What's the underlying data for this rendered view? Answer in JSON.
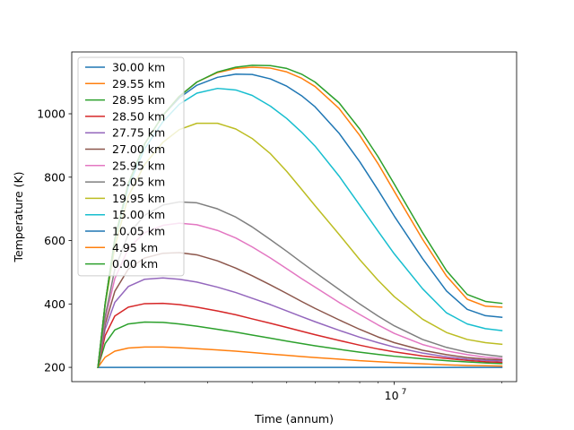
{
  "chart_data": {
    "type": "line",
    "title": "",
    "xlabel": "Time (annum)",
    "ylabel": "Temperature (K)",
    "xscale": "log",
    "xlim": [
      1250000,
      22000000
    ],
    "ylim": [
      155,
      1195
    ],
    "x_major_ticks": [
      {
        "value": 10000000,
        "label": "10",
        "exponent": "7"
      }
    ],
    "x_minor_ticks": [
      2000000,
      3000000,
      4000000,
      5000000,
      6000000,
      7000000,
      8000000,
      9000000,
      20000000
    ],
    "y_ticks": [
      200,
      400,
      600,
      800,
      1000
    ],
    "legend_position": "upper-left",
    "x": [
      1480000,
      1550000,
      1650000,
      1800000,
      2000000,
      2250000,
      2500000,
      2800000,
      3200000,
      3600000,
      4000000,
      4500000,
      5000000,
      5500000,
      6000000,
      7000000,
      8000000,
      9000000,
      10000000,
      12000000,
      14000000,
      16000000,
      18000000,
      20000000
    ],
    "series": [
      {
        "name": "30.00 km",
        "color": "#1f77b4",
        "values": [
          200,
          200,
          200,
          200,
          200,
          200,
          200,
          200,
          200,
          200,
          200,
          200,
          200,
          200,
          200,
          200,
          200,
          200,
          200,
          200,
          200,
          200,
          200,
          200
        ]
      },
      {
        "name": "29.55 km",
        "color": "#ff7f0e",
        "values": [
          200,
          232,
          251,
          261,
          264,
          264,
          262,
          259,
          255,
          251,
          247,
          242,
          238,
          234,
          231,
          226,
          221,
          218,
          215,
          211,
          208,
          206,
          205,
          204
        ]
      },
      {
        "name": "28.95 km",
        "color": "#2ca02c",
        "values": [
          200,
          275,
          318,
          337,
          343,
          342,
          337,
          330,
          320,
          311,
          302,
          292,
          283,
          275,
          268,
          257,
          248,
          241,
          235,
          227,
          221,
          217,
          214,
          212
        ]
      },
      {
        "name": "28.50 km",
        "color": "#d62728",
        "values": [
          200,
          300,
          362,
          390,
          401,
          402,
          398,
          390,
          378,
          366,
          353,
          339,
          326,
          314,
          303,
          285,
          270,
          258,
          249,
          236,
          228,
          222,
          218,
          216
        ]
      },
      {
        "name": "27.75 km",
        "color": "#9467bd",
        "values": [
          200,
          320,
          405,
          455,
          478,
          482,
          478,
          469,
          453,
          436,
          418,
          398,
          378,
          360,
          344,
          317,
          295,
          278,
          264,
          245,
          233,
          226,
          222,
          220
        ]
      },
      {
        "name": "27.00 km",
        "color": "#8c564b",
        "values": [
          200,
          335,
          440,
          510,
          545,
          560,
          562,
          555,
          536,
          513,
          489,
          460,
          433,
          408,
          386,
          350,
          320,
          296,
          278,
          254,
          240,
          231,
          226,
          224
        ]
      },
      {
        "name": "25.95 km",
        "color": "#e377c2",
        "values": [
          200,
          350,
          480,
          575,
          625,
          648,
          655,
          650,
          632,
          608,
          580,
          545,
          511,
          480,
          453,
          405,
          367,
          334,
          307,
          272,
          252,
          240,
          232,
          228
        ]
      },
      {
        "name": "25.05 km",
        "color": "#7f7f7f",
        "values": [
          200,
          360,
          510,
          620,
          680,
          712,
          722,
          719,
          700,
          674,
          643,
          603,
          566,
          531,
          500,
          446,
          400,
          362,
          331,
          288,
          263,
          248,
          240,
          234
        ]
      },
      {
        "name": "19.95 km",
        "color": "#bcbd22",
        "values": [
          200,
          395,
          580,
          740,
          840,
          910,
          950,
          970,
          970,
          952,
          922,
          874,
          818,
          762,
          710,
          620,
          540,
          475,
          423,
          352,
          310,
          288,
          278,
          273
        ]
      },
      {
        "name": "15.00 km",
        "color": "#17becf",
        "values": [
          200,
          400,
          600,
          770,
          890,
          975,
          1030,
          1065,
          1080,
          1075,
          1058,
          1024,
          985,
          942,
          898,
          804,
          712,
          630,
          558,
          448,
          372,
          337,
          322,
          316
        ]
      },
      {
        "name": "10.05 km",
        "color": "#1f77b4",
        "values": [
          200,
          400,
          605,
          780,
          905,
          995,
          1050,
          1090,
          1115,
          1125,
          1124,
          1110,
          1087,
          1057,
          1022,
          939,
          849,
          760,
          677,
          543,
          441,
          383,
          363,
          358
        ]
      },
      {
        "name": "4.95 km",
        "color": "#ff7f0e",
        "values": [
          200,
          400,
          605,
          780,
          905,
          995,
          1055,
          1100,
          1130,
          1143,
          1147,
          1144,
          1132,
          1112,
          1086,
          1017,
          932,
          843,
          755,
          604,
          488,
          415,
          393,
          390
        ]
      },
      {
        "name": "0.00 km",
        "color": "#2ca02c",
        "values": [
          200,
          400,
          605,
          780,
          905,
          995,
          1055,
          1100,
          1132,
          1147,
          1153,
          1152,
          1143,
          1125,
          1100,
          1035,
          952,
          865,
          778,
          625,
          505,
          430,
          408,
          402
        ]
      }
    ]
  }
}
